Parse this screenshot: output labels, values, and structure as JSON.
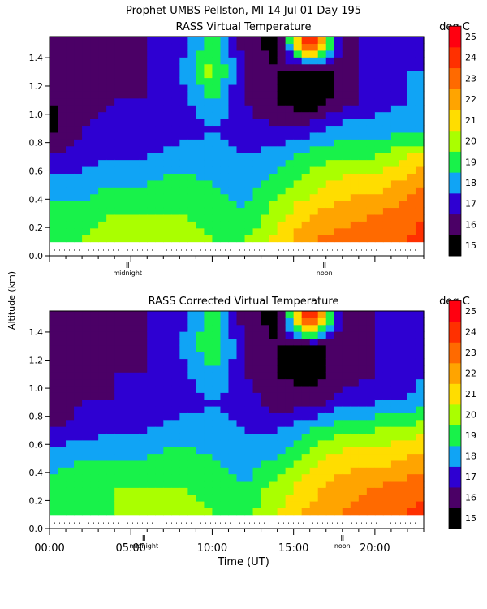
{
  "header": {
    "title": "Prophet  UMBS Pellston, MI  14 Jul 01 Day 195"
  },
  "y_axis_label": "Altitude (km)",
  "x_axis_label": "Time (UT)",
  "colors": {
    "scale": [
      "#000000",
      "#4b0066",
      "#2e00d2",
      "#10a4f5",
      "#18f24a",
      "#aaff00",
      "#ffdd00",
      "#ffa400",
      "#ff6a00",
      "#ff3000",
      "#ff0010"
    ],
    "above_max": "#ffffff",
    "background": "#ffffff"
  },
  "chart_data": [
    {
      "type": "heatmap",
      "title": "RASS Virtual Temperature",
      "units": "deg C",
      "xlim": [
        0,
        23
      ],
      "ylim": [
        0,
        1.55
      ],
      "y_ticks": [
        "0.0",
        "0.2",
        "0.4",
        "0.6",
        "0.8",
        "1.0",
        "1.2",
        "1.4"
      ],
      "x_markers": [
        {
          "label": "midnight",
          "x": 4.8
        },
        {
          "label": "noon",
          "x": 16.9
        }
      ],
      "colorbar": {
        "min": 15,
        "max": 25,
        "labels": [
          "15",
          "16",
          "17",
          "18",
          "19",
          "20",
          "21",
          "22",
          "23",
          "24",
          "25"
        ]
      },
      "times": [
        0,
        2,
        4,
        6,
        8,
        10,
        12,
        14,
        16,
        18,
        20,
        22,
        23
      ],
      "altitudes": [
        0.1,
        0.3,
        0.5,
        0.7,
        0.9,
        1.1,
        1.3,
        1.5
      ],
      "temperatures": [
        [
          20.0,
          20.0,
          20.5,
          20.5,
          20.5,
          20.0,
          20.0,
          21.5,
          23.0,
          23.5,
          23.5,
          24.0,
          24.5
        ],
        [
          19.5,
          19.5,
          20.0,
          20.0,
          20.0,
          19.5,
          19.0,
          20.5,
          22.0,
          22.5,
          23.0,
          23.5,
          24.0
        ],
        [
          18.5,
          18.5,
          19.0,
          19.0,
          19.5,
          19.0,
          18.5,
          19.5,
          20.5,
          21.5,
          21.5,
          22.5,
          23.0
        ],
        [
          17.0,
          17.5,
          18.0,
          18.0,
          18.5,
          18.5,
          18.0,
          18.5,
          19.5,
          20.0,
          20.0,
          21.0,
          21.5
        ],
        [
          15.5,
          17.0,
          17.5,
          17.0,
          17.5,
          18.0,
          17.5,
          17.0,
          17.5,
          18.5,
          18.5,
          18.5,
          18.5
        ],
        [
          16.0,
          16.5,
          17.0,
          17.0,
          17.5,
          19.0,
          17.0,
          16.0,
          15.0,
          16.5,
          17.5,
          18.0,
          18.0
        ],
        [
          16.5,
          16.5,
          16.5,
          17.0,
          18.0,
          20.5,
          17.0,
          16.0,
          15.0,
          16.5,
          17.5,
          18.0,
          18.0
        ],
        [
          16.5,
          16.5,
          16.5,
          17.0,
          17.5,
          19.5,
          16.5,
          15.5,
          25.5,
          16.5,
          17.5,
          17.5,
          18.0
        ]
      ]
    },
    {
      "type": "heatmap",
      "title": "RASS Corrected Virtual Temperature",
      "units": "deg C",
      "xlim": [
        0,
        23
      ],
      "ylim": [
        0,
        1.55
      ],
      "y_ticks": [
        "0.0",
        "0.2",
        "0.4",
        "0.6",
        "0.8",
        "1.0",
        "1.2",
        "1.4"
      ],
      "x_ticks": [
        "00:00",
        "05:00",
        "10:00",
        "15:00",
        "20:00"
      ],
      "x_markers": [
        {
          "label": "midnight",
          "x": 5.8
        },
        {
          "label": "noon",
          "x": 18.0
        }
      ],
      "colorbar": {
        "min": 15,
        "max": 25,
        "labels": [
          "15",
          "16",
          "17",
          "18",
          "19",
          "20",
          "21",
          "22",
          "23",
          "24",
          "25"
        ]
      },
      "times": [
        0,
        2,
        4,
        6,
        8,
        10,
        12,
        14,
        16,
        18,
        20,
        22,
        23
      ],
      "altitudes": [
        0.1,
        0.3,
        0.5,
        0.7,
        0.9,
        1.1,
        1.3,
        1.5
      ],
      "temperatures": [
        [
          19.5,
          19.5,
          20.0,
          20.5,
          20.5,
          20.0,
          19.5,
          21.0,
          22.5,
          23.0,
          23.5,
          24.0,
          24.5
        ],
        [
          19.5,
          19.5,
          20.0,
          20.0,
          20.0,
          19.5,
          19.0,
          20.5,
          21.5,
          22.5,
          23.0,
          23.5,
          23.5
        ],
        [
          18.5,
          19.0,
          19.0,
          19.0,
          19.5,
          19.0,
          18.5,
          19.0,
          20.5,
          21.5,
          21.5,
          22.0,
          22.5
        ],
        [
          17.0,
          17.5,
          18.0,
          18.0,
          18.5,
          18.5,
          18.0,
          18.0,
          19.0,
          20.0,
          20.0,
          20.5,
          21.0
        ],
        [
          16.0,
          17.0,
          17.0,
          17.0,
          17.5,
          18.0,
          17.5,
          16.5,
          16.5,
          17.5,
          18.0,
          18.0,
          18.5
        ],
        [
          16.5,
          16.5,
          17.0,
          17.0,
          17.5,
          19.0,
          17.0,
          16.0,
          15.5,
          16.5,
          17.0,
          17.5,
          18.0
        ],
        [
          16.5,
          16.5,
          16.5,
          17.0,
          18.0,
          20.0,
          17.0,
          16.0,
          15.5,
          16.5,
          17.0,
          17.5,
          18.0
        ],
        [
          16.5,
          16.5,
          16.5,
          17.0,
          17.5,
          19.5,
          16.5,
          15.5,
          25.5,
          16.5,
          17.0,
          17.5,
          18.0
        ]
      ]
    }
  ]
}
